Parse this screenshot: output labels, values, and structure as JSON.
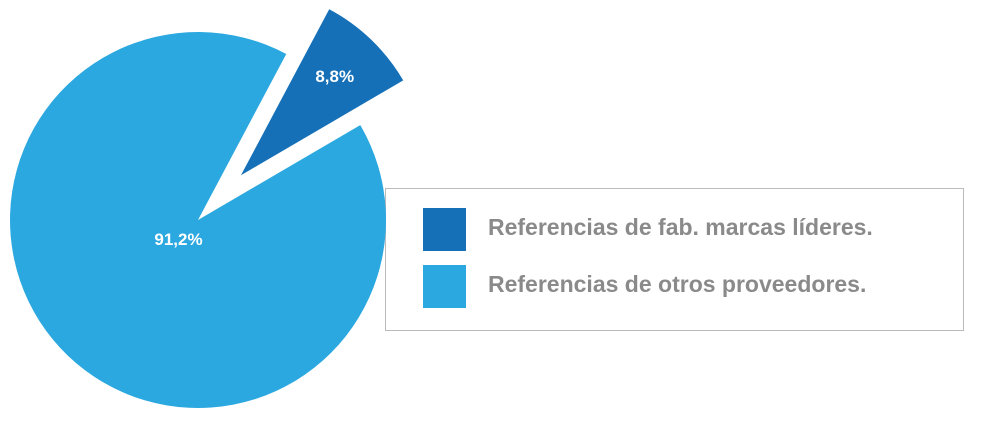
{
  "chart_data": {
    "type": "pie",
    "categories": [
      "Referencias de fab. marcas líderes.",
      "Referencias de otros proveedores."
    ],
    "values": [
      8.8,
      91.2
    ],
    "value_labels": [
      "8,8%",
      "91,2%"
    ],
    "colors": [
      "#1570b8",
      "#2ba8e0"
    ]
  }
}
